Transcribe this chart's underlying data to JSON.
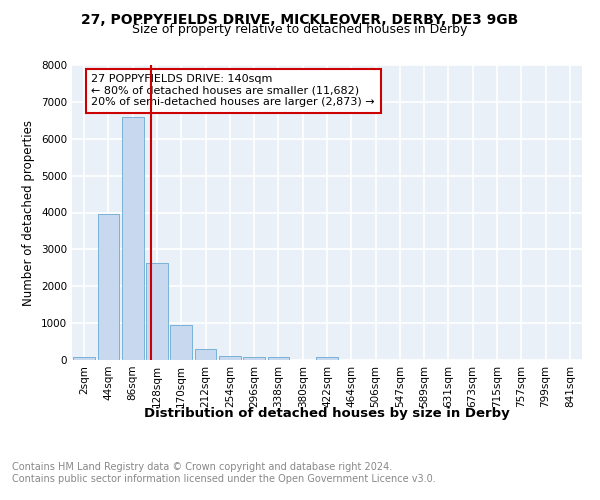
{
  "title1": "27, POPPYFIELDS DRIVE, MICKLEOVER, DERBY, DE3 9GB",
  "title2": "Size of property relative to detached houses in Derby",
  "xlabel": "Distribution of detached houses by size in Derby",
  "ylabel": "Number of detached properties",
  "bin_labels": [
    "2sqm",
    "44sqm",
    "86sqm",
    "128sqm",
    "170sqm",
    "212sqm",
    "254sqm",
    "296sqm",
    "338sqm",
    "380sqm",
    "422sqm",
    "464sqm",
    "506sqm",
    "547sqm",
    "589sqm",
    "631sqm",
    "673sqm",
    "715sqm",
    "757sqm",
    "799sqm",
    "841sqm"
  ],
  "bar_heights": [
    70,
    3970,
    6600,
    2630,
    960,
    310,
    120,
    80,
    80,
    0,
    80,
    0,
    0,
    0,
    0,
    0,
    0,
    0,
    0,
    0,
    0
  ],
  "bar_color": "#c8d8ee",
  "bar_edge_color": "#6aaad4",
  "property_label": "27 POPPYFIELDS DRIVE: 140sqm",
  "annotation_line1": "← 80% of detached houses are smaller (11,682)",
  "annotation_line2": "20% of semi-detached houses are larger (2,873) →",
  "vline_color": "#cc0000",
  "annotation_box_edge": "#cc0000",
  "background_color": "#eaf0f8",
  "grid_color": "#ffffff",
  "ylim": [
    0,
    8000
  ],
  "footer": "Contains HM Land Registry data © Crown copyright and database right 2024.\nContains public sector information licensed under the Open Government Licence v3.0.",
  "title1_fontsize": 10,
  "title2_fontsize": 9,
  "xlabel_fontsize": 9.5,
  "ylabel_fontsize": 8.5,
  "tick_fontsize": 7.5,
  "ann_fontsize": 8,
  "footer_fontsize": 7
}
